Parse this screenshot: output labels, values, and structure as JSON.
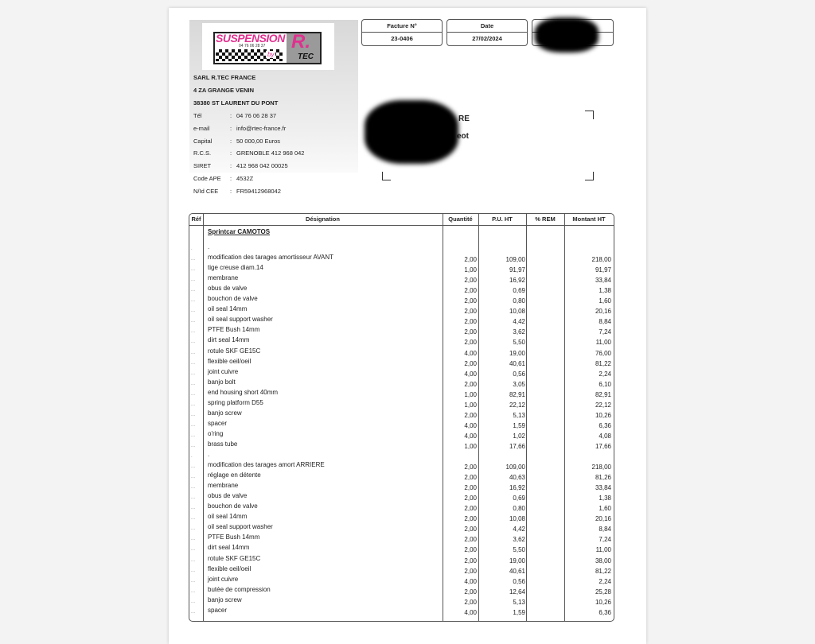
{
  "logo": {
    "brand": "SUSPENSION",
    "phone": "04 76 06 28 37",
    "by": "by",
    "r": "R.",
    "tec": "TEC"
  },
  "sender": {
    "name": "SARL R.TEC FRANCE",
    "address1": "4 ZA GRANGE VENIN",
    "address2": "38380 ST LAURENT DU PONT",
    "fields": [
      {
        "label": "Tél",
        "value": "04 76 06 28 37"
      },
      {
        "label": "e-mail",
        "value": "info@rtec-france.fr"
      },
      {
        "label": "Capital",
        "value": "50 000,00 Euros"
      },
      {
        "label": "R.C.S.",
        "value": "GRENOBLE 412 968 042"
      },
      {
        "label": "SIRET",
        "value": "412 968 042 00025"
      },
      {
        "label": "Code APE",
        "value": "4532Z"
      },
      {
        "label": "N/Id CEE",
        "value": "FR59412968042"
      }
    ]
  },
  "header": {
    "invoice_label": "Facture N°",
    "invoice_value": "23-0406",
    "date_label": "Date",
    "date_value": "27/02/2024"
  },
  "recipient": {
    "fragment1": "RE",
    "fragment2": "eot"
  },
  "table": {
    "columns": [
      "Réf",
      "Désignation",
      "Quantité",
      "P.U. HT",
      "% REM",
      "Montant HT"
    ],
    "section_title": "Sprintcar CAMOTOS",
    "rows": [
      [
        ".",
        ".",
        "",
        "",
        ""
      ],
      [
        "...",
        "modification des tarages amortisseur AVANT",
        "2,00",
        "109,00",
        "218,00"
      ],
      [
        "...",
        "tige creuse diam.14",
        "1,00",
        "91,97",
        "91,97"
      ],
      [
        "...",
        "membrane",
        "2,00",
        "16,92",
        "33,84"
      ],
      [
        "...",
        "obus de valve",
        "2,00",
        "0,69",
        "1,38"
      ],
      [
        "...",
        "bouchon de valve",
        "2,00",
        "0,80",
        "1,60"
      ],
      [
        "...",
        "oil seal 14mm",
        "2,00",
        "10,08",
        "20,16"
      ],
      [
        "...",
        "oil seal support washer",
        "2,00",
        "4,42",
        "8,84"
      ],
      [
        "...",
        "PTFE Bush 14mm",
        "2,00",
        "3,62",
        "7,24"
      ],
      [
        "...",
        "dirt seal 14mm",
        "2,00",
        "5,50",
        "11,00"
      ],
      [
        "...",
        "rotule SKF GE15C",
        "4,00",
        "19,00",
        "76,00"
      ],
      [
        "...",
        "flexible oeil/oeil",
        "2,00",
        "40,61",
        "81,22"
      ],
      [
        "...",
        "joint cuivre",
        "4,00",
        "0,56",
        "2,24"
      ],
      [
        "...",
        "banjo bolt",
        "2,00",
        "3,05",
        "6,10"
      ],
      [
        "...",
        "end housing short 40mm",
        "1,00",
        "82,91",
        "82,91"
      ],
      [
        "...",
        "spring platform D55",
        "1,00",
        "22,12",
        "22,12"
      ],
      [
        "...",
        "banjo screw",
        "2,00",
        "5,13",
        "10,26"
      ],
      [
        "...",
        "spacer",
        "4,00",
        "1,59",
        "6,36"
      ],
      [
        "...",
        "o'ring",
        "4,00",
        "1,02",
        "4,08"
      ],
      [
        "...",
        "brass tube",
        "1,00",
        "17,66",
        "17,66"
      ],
      [
        ".",
        ".",
        "",
        "",
        ""
      ],
      [
        "...",
        "modification des tarages amort ARRIERE",
        "2,00",
        "109,00",
        "218,00"
      ],
      [
        "...",
        "réglage en détente",
        "2,00",
        "40,63",
        "81,26"
      ],
      [
        "...",
        "membrane",
        "2,00",
        "16,92",
        "33,84"
      ],
      [
        "...",
        "obus de valve",
        "2,00",
        "0,69",
        "1,38"
      ],
      [
        "...",
        "bouchon de valve",
        "2,00",
        "0,80",
        "1,60"
      ],
      [
        "...",
        "oil seal 14mm",
        "2,00",
        "10,08",
        "20,16"
      ],
      [
        "...",
        "oil seal support washer",
        "2,00",
        "4,42",
        "8,84"
      ],
      [
        "...",
        "PTFE Bush 14mm",
        "2,00",
        "3,62",
        "7,24"
      ],
      [
        "...",
        "dirt seal 14mm",
        "2,00",
        "5,50",
        "11,00"
      ],
      [
        "...",
        "rotule SKF GE15C",
        "2,00",
        "19,00",
        "38,00"
      ],
      [
        "...",
        "flexible oeil/oeil",
        "2,00",
        "40,61",
        "81,22"
      ],
      [
        "...",
        "joint cuivre",
        "4,00",
        "0,56",
        "2,24"
      ],
      [
        "...",
        "butée de compression",
        "2,00",
        "12,64",
        "25,28"
      ],
      [
        "...",
        "banjo screw",
        "2,00",
        "5,13",
        "10,26"
      ],
      [
        "...",
        "spacer",
        "4,00",
        "1,59",
        "6,36"
      ]
    ]
  },
  "colors": {
    "brand_pink": "#e0308f",
    "redaction": "#000000"
  }
}
